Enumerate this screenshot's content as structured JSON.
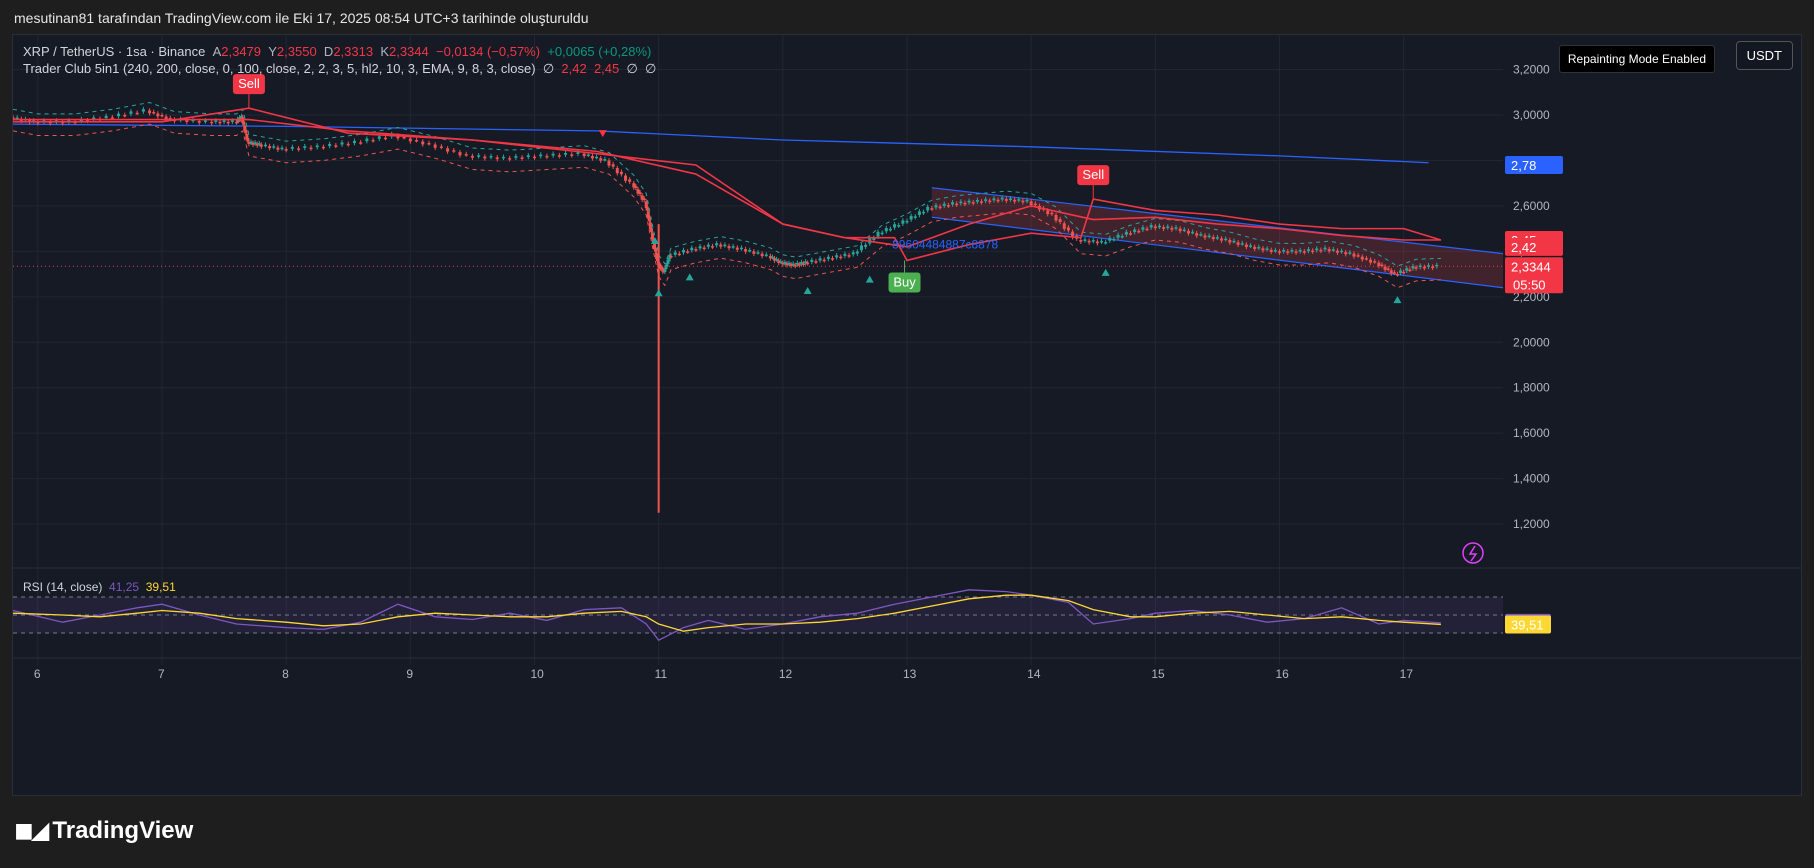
{
  "caption": "mesutinan81 tarafından TradingView.com ile Eki 17, 2025 08:54 UTC+3 tarihinde oluşturuldu",
  "brand": {
    "name": "TradingView",
    "logo": "tradingview-logo"
  },
  "header": {
    "symbol": "XRP / TetherUS · 1sa · Binance",
    "o_label": "A",
    "o_val": "2,3479",
    "h_label": "Y",
    "h_val": "2,3550",
    "l_label": "D",
    "l_val": "2,3313",
    "c_label": "K",
    "c_val": "2,3344",
    "change": "−0,0134 (−0,57%)",
    "extra": "+0,0065 (+0,28%)",
    "indicator": "Trader Club 5in1 (240, 200, close, 0, 100, close, 2, 2, 3, 5, hl2, 10, 3, EMA, 9, 8, 3, close)",
    "ind_v0": "∅",
    "ind_v1": "2,42",
    "ind_v2": "2,45",
    "ind_v3": "∅",
    "ind_v4": "∅",
    "repaint": "Repainting Mode Enabled",
    "currency": "USDT"
  },
  "rsi_legend": {
    "label": "RSI (14, close)",
    "v1": "41,25",
    "v2": "39,51"
  },
  "chart_data": {
    "type": "line",
    "title": "XRP / TetherUS · 1sa · Binance",
    "xlabel": "",
    "ylabel": "",
    "x_ticks": [
      "6",
      "7",
      "8",
      "9",
      "10",
      "11",
      "12",
      "13",
      "14",
      "15",
      "16",
      "17"
    ],
    "y_ticks": [
      "3,2000",
      "3,0000",
      "2,8000",
      "2,6000",
      "2,4000",
      "2,2000",
      "2,0000",
      "1,8000",
      "1,6000",
      "1,4000",
      "1,2000"
    ],
    "ylim": [
      1.02,
      3.22
    ],
    "xlim": [
      5.8,
      17.8
    ],
    "grid": true,
    "price": {
      "x": [
        5.8,
        6.0,
        6.3,
        6.6,
        6.9,
        7.1,
        7.4,
        7.6,
        7.65,
        7.7,
        7.8,
        8.0,
        8.3,
        8.6,
        8.9,
        9.2,
        9.5,
        9.8,
        10.1,
        10.4,
        10.6,
        10.8,
        10.9,
        10.95,
        11.0,
        11.05,
        11.1,
        11.3,
        11.5,
        11.7,
        11.9,
        12.0,
        12.1,
        12.2,
        12.4,
        12.6,
        12.8,
        13.0,
        13.2,
        13.4,
        13.6,
        13.8,
        14.0,
        14.2,
        14.4,
        14.6,
        14.8,
        15.0,
        15.2,
        15.4,
        15.6,
        15.8,
        16.0,
        16.2,
        16.4,
        16.6,
        16.8,
        16.95,
        17.1,
        17.3
      ],
      "y": [
        2.99,
        2.97,
        2.97,
        2.99,
        3.02,
        2.98,
        2.97,
        2.97,
        2.99,
        2.88,
        2.87,
        2.85,
        2.86,
        2.88,
        2.91,
        2.87,
        2.82,
        2.81,
        2.82,
        2.83,
        2.8,
        2.7,
        2.62,
        2.48,
        2.35,
        2.31,
        2.38,
        2.41,
        2.43,
        2.41,
        2.38,
        2.35,
        2.34,
        2.35,
        2.37,
        2.39,
        2.48,
        2.53,
        2.59,
        2.61,
        2.62,
        2.63,
        2.62,
        2.56,
        2.45,
        2.44,
        2.48,
        2.51,
        2.5,
        2.47,
        2.45,
        2.42,
        2.4,
        2.4,
        2.41,
        2.39,
        2.35,
        2.3,
        2.33,
        2.3344
      ]
    },
    "wick_low": {
      "x": 11.0,
      "low": 1.25,
      "high": 2.52
    },
    "red_ma_1": {
      "x": [
        5.8,
        7.0,
        7.7,
        8.5,
        9.5,
        10.5,
        11.3,
        12.0,
        12.5,
        13.0,
        13.5,
        14.0,
        14.5,
        15.0,
        15.5,
        16.0,
        16.5,
        17.0,
        17.3
      ],
      "y": [
        2.98,
        2.98,
        2.98,
        2.93,
        2.89,
        2.84,
        2.74,
        2.52,
        2.46,
        2.42,
        2.52,
        2.6,
        2.54,
        2.55,
        2.52,
        2.5,
        2.47,
        2.45,
        2.45
      ]
    },
    "red_ma_2": {
      "x": [
        5.8,
        7.0,
        7.7,
        8.5,
        9.5,
        10.5,
        11.3,
        12.0,
        12.5,
        12.9,
        13.0,
        13.5,
        14.0,
        14.4,
        14.5,
        15.0,
        15.5,
        16.0,
        16.5,
        17.0,
        17.3
      ],
      "y": [
        2.97,
        2.97,
        3.03,
        2.92,
        2.89,
        2.83,
        2.78,
        2.52,
        2.46,
        2.46,
        2.36,
        2.43,
        2.48,
        2.46,
        2.63,
        2.58,
        2.56,
        2.52,
        2.5,
        2.5,
        2.45
      ]
    },
    "blue_ma": {
      "x": [
        5.8,
        8.0,
        10.5,
        12.0,
        14.0,
        16.0,
        17.2
      ],
      "y": [
        2.96,
        2.95,
        2.93,
        2.89,
        2.86,
        2.82,
        2.79
      ]
    },
    "channel_upper": {
      "x": [
        13.2,
        17.8
      ],
      "y": [
        2.68,
        2.39
      ]
    },
    "channel_lower": {
      "x": [
        13.2,
        17.8
      ],
      "y": [
        2.55,
        2.24
      ]
    },
    "signals": [
      {
        "type": "sell",
        "label": "Sell",
        "x": 7.7,
        "y": 3.03
      },
      {
        "type": "buy",
        "label": "Buy",
        "x": 12.98,
        "y": 2.36
      },
      {
        "type": "sell",
        "label": "Sell",
        "x": 14.5,
        "y": 2.63
      }
    ],
    "annotation": {
      "text": "89604484887c8878",
      "x": 12.88,
      "y": 2.43
    },
    "price_tags": [
      {
        "label": "2,78",
        "y": 2.78,
        "color": "#2962ff"
      },
      {
        "label": "2,45",
        "y": 2.45,
        "color": "#f23645"
      },
      {
        "label": "2,42",
        "y": 2.42,
        "color": "#f23645"
      },
      {
        "label": "2,3344",
        "sub": "05:50",
        "y": 2.3344,
        "color": "#f23645"
      }
    ],
    "rsi": {
      "ylim": [
        0,
        100
      ],
      "bands": [
        70,
        50,
        30
      ],
      "x": [
        5.8,
        6.2,
        6.5,
        6.8,
        7.0,
        7.3,
        7.6,
        8.0,
        8.3,
        8.6,
        8.9,
        9.2,
        9.5,
        9.8,
        10.1,
        10.4,
        10.7,
        10.9,
        11.0,
        11.2,
        11.4,
        11.7,
        12.0,
        12.3,
        12.6,
        12.9,
        13.2,
        13.5,
        13.8,
        14.0,
        14.3,
        14.5,
        14.8,
        15.0,
        15.3,
        15.6,
        15.9,
        16.2,
        16.5,
        16.8,
        17.0,
        17.3
      ],
      "rsi": [
        55,
        42,
        50,
        58,
        62,
        50,
        40,
        36,
        34,
        42,
        62,
        48,
        45,
        52,
        44,
        56,
        58,
        40,
        22,
        36,
        44,
        34,
        40,
        48,
        52,
        62,
        70,
        78,
        76,
        72,
        64,
        40,
        46,
        52,
        55,
        50,
        42,
        46,
        58,
        40,
        44,
        41.25
      ],
      "ma": [
        52,
        50,
        48,
        52,
        55,
        52,
        46,
        42,
        38,
        40,
        48,
        52,
        50,
        48,
        48,
        52,
        54,
        48,
        40,
        32,
        36,
        40,
        40,
        42,
        46,
        52,
        60,
        68,
        72,
        72,
        66,
        56,
        48,
        48,
        52,
        54,
        50,
        46,
        48,
        44,
        42,
        39.51
      ],
      "tags": [
        {
          "label": "41,25",
          "value": 41.25,
          "color": "#7e57c2"
        },
        {
          "label": "39,51",
          "value": 39.51,
          "color": "#fdd835"
        }
      ]
    }
  }
}
